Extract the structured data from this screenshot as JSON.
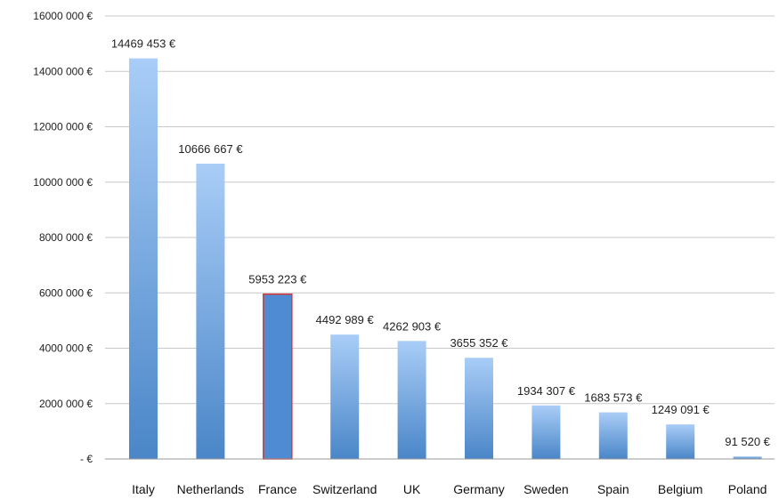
{
  "chart_data": {
    "type": "bar",
    "categories": [
      "Italy",
      "Netherlands",
      "France",
      "Switzerland",
      "UK",
      "Germany",
      "Sweden",
      "Spain",
      "Belgium",
      "Poland"
    ],
    "values": [
      14469453,
      10666667,
      5953223,
      4492989,
      4262903,
      3655352,
      1934307,
      1683573,
      1249091,
      91520
    ],
    "data_labels": [
      "14469 453 €",
      "10666 667 €",
      "5953 223 €",
      "4492 989 €",
      "4262 903 €",
      "3655 352 €",
      "1934 307 €",
      "1683 573 €",
      "1249 091 €",
      "91 520 €"
    ],
    "y_ticks": [
      0,
      2000000,
      4000000,
      6000000,
      8000000,
      10000000,
      12000000,
      14000000,
      16000000
    ],
    "y_tick_labels": [
      "-  €",
      "2000 000 €",
      "4000 000 €",
      "6000 000 €",
      "8000 000 €",
      "10000 000 €",
      "12000 000 €",
      "14000 000 €",
      "16000 000 €"
    ],
    "ylim": [
      0,
      16000000
    ],
    "grid": true,
    "highlighted_category": "France",
    "colors": {
      "bar_top": "#a9cdf7",
      "bar_bottom": "#4a86c8",
      "highlight_bar": "#4e8bd2",
      "highlight_border": "#d9383a",
      "grid": "#c8c8c8"
    }
  }
}
